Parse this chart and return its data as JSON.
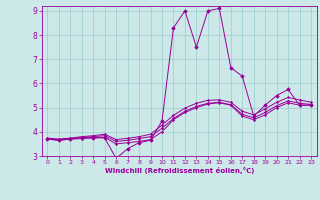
{
  "xlabel": "Windchill (Refroidissement éolien,°C)",
  "background_color": "#cce8e8",
  "line_color": "#990099",
  "grid_color": "#99cccc",
  "axis_color": "#990099",
  "text_color": "#990099",
  "xlim": [
    -0.5,
    23.5
  ],
  "ylim": [
    3,
    9.2
  ],
  "xticks": [
    0,
    1,
    2,
    3,
    4,
    5,
    6,
    7,
    8,
    9,
    10,
    11,
    12,
    13,
    14,
    15,
    16,
    17,
    18,
    19,
    20,
    21,
    22,
    23
  ],
  "yticks": [
    3,
    4,
    5,
    6,
    7,
    8,
    9
  ],
  "series": [
    [
      3.7,
      3.65,
      3.7,
      3.75,
      3.75,
      3.75,
      2.9,
      3.3,
      3.55,
      3.65,
      4.45,
      8.3,
      9.0,
      7.5,
      9.0,
      9.1,
      6.65,
      6.3,
      4.65,
      5.1,
      5.5,
      5.75,
      5.1,
      5.1
    ],
    [
      3.7,
      3.65,
      3.7,
      3.72,
      3.75,
      3.77,
      3.5,
      3.55,
      3.6,
      3.68,
      4.0,
      4.5,
      4.8,
      5.0,
      5.15,
      5.2,
      5.1,
      4.65,
      4.5,
      4.7,
      5.0,
      5.2,
      5.1,
      5.1
    ],
    [
      3.72,
      3.68,
      3.72,
      3.76,
      3.8,
      3.84,
      3.6,
      3.65,
      3.72,
      3.8,
      4.15,
      4.55,
      4.85,
      5.05,
      5.18,
      5.22,
      5.12,
      4.72,
      4.58,
      4.8,
      5.08,
      5.28,
      5.18,
      5.13
    ],
    [
      3.74,
      3.7,
      3.74,
      3.8,
      3.84,
      3.9,
      3.68,
      3.73,
      3.8,
      3.9,
      4.28,
      4.68,
      4.98,
      5.18,
      5.3,
      5.32,
      5.22,
      4.85,
      4.7,
      4.95,
      5.22,
      5.42,
      5.32,
      5.22
    ]
  ],
  "marker_series": 0,
  "spine_color": "#990099"
}
